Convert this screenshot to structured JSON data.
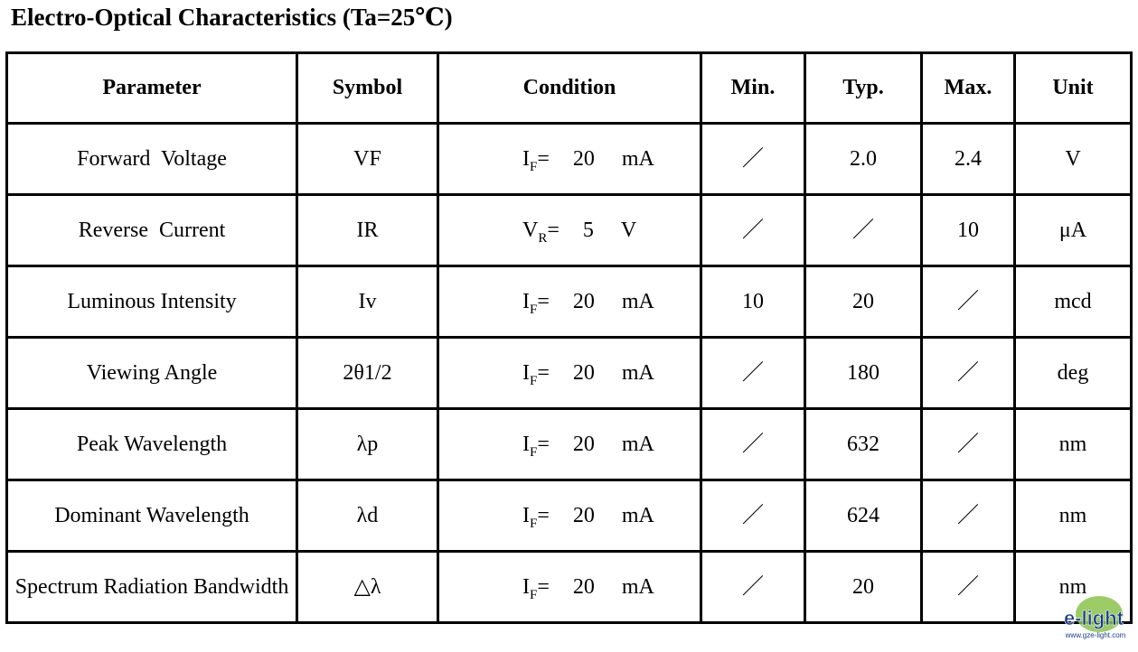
{
  "title": "Electro-Optical Characteristics (Ta=25℃)",
  "table": {
    "header": [
      "Parameter",
      "Symbol",
      "Condition",
      "Min.",
      "Typ.",
      "Max.",
      "Unit"
    ],
    "rows": [
      {
        "parameter": "Forward  Voltage",
        "symbol": "VF",
        "condition": {
          "symbol": "I",
          "subscript": "F",
          "sign": "=",
          "value": "20",
          "unit": "mA"
        },
        "min": "／",
        "typ": "2.0",
        "max": "2.4",
        "unit": "V"
      },
      {
        "parameter": "Reverse  Current",
        "symbol": "IR",
        "condition": {
          "symbol": "V",
          "subscript": "R",
          "sign": "=",
          "value": "5",
          "unit": "V"
        },
        "min": "／",
        "typ": "／",
        "max": "10",
        "unit": "μA"
      },
      {
        "parameter": "Luminous Intensity",
        "symbol": "Iv",
        "condition": {
          "symbol": "I",
          "subscript": "F",
          "sign": "=",
          "value": "20",
          "unit": "mA"
        },
        "min": "10",
        "typ": "20",
        "max": "／",
        "unit": "mcd"
      },
      {
        "parameter": "Viewing Angle",
        "symbol": "2θ1/2",
        "condition": {
          "symbol": "I",
          "subscript": "F",
          "sign": "=",
          "value": "20",
          "unit": "mA"
        },
        "min": "／",
        "typ": "180",
        "max": "／",
        "unit": "deg"
      },
      {
        "parameter": "Peak Wavelength",
        "symbol": "λp",
        "condition": {
          "symbol": "I",
          "subscript": "F",
          "sign": "=",
          "value": "20",
          "unit": "mA"
        },
        "min": "／",
        "typ": "632",
        "max": "／",
        "unit": "nm"
      },
      {
        "parameter": "Dominant Wavelength",
        "symbol": "λd",
        "condition": {
          "symbol": "I",
          "subscript": "F",
          "sign": "=",
          "value": "20",
          "unit": "mA"
        },
        "min": "／",
        "typ": "624",
        "max": "／",
        "unit": "nm"
      },
      {
        "parameter": "Spectrum Radiation Bandwidth",
        "symbol": "△λ",
        "condition": {
          "symbol": "I",
          "subscript": "F",
          "sign": "=",
          "value": "20",
          "unit": "mA"
        },
        "min": "／",
        "typ": "20",
        "max": "／",
        "unit": "nm"
      }
    ]
  },
  "watermark": {
    "logo": "e-light",
    "url": "www.gze-light.com"
  }
}
